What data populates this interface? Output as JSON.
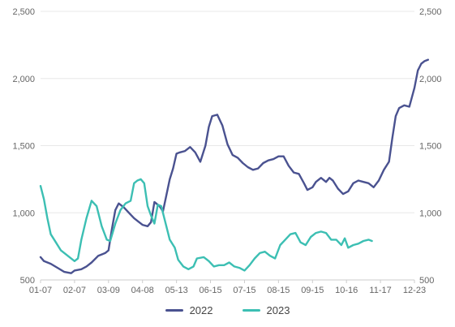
{
  "chart_data": {
    "type": "line",
    "x_labels": [
      "01-07",
      "02-07",
      "03-09",
      "04-08",
      "05-13",
      "06-15",
      "07-15",
      "08-15",
      "09-15",
      "10-16",
      "11-17",
      "12-23"
    ],
    "ylim": [
      500,
      2500
    ],
    "y_ticks": [
      "500",
      "1,000",
      "1,500",
      "2,000",
      "2,500"
    ],
    "y_tick_values": [
      500,
      1000,
      1500,
      2000,
      2500
    ],
    "grid": true,
    "legend_position": "bottom",
    "series": [
      {
        "name": "2022",
        "color": "#4a5290",
        "points": [
          [
            0,
            670
          ],
          [
            0.1,
            640
          ],
          [
            0.3,
            620
          ],
          [
            0.5,
            590
          ],
          [
            0.7,
            560
          ],
          [
            0.9,
            550
          ],
          [
            1.0,
            570
          ],
          [
            1.2,
            580
          ],
          [
            1.35,
            600
          ],
          [
            1.5,
            630
          ],
          [
            1.7,
            680
          ],
          [
            1.9,
            700
          ],
          [
            2.0,
            720
          ],
          [
            2.1,
            880
          ],
          [
            2.2,
            1020
          ],
          [
            2.3,
            1070
          ],
          [
            2.45,
            1040
          ],
          [
            2.6,
            1000
          ],
          [
            2.75,
            960
          ],
          [
            2.9,
            930
          ],
          [
            3.0,
            910
          ],
          [
            3.15,
            900
          ],
          [
            3.25,
            930
          ],
          [
            3.35,
            1080
          ],
          [
            3.5,
            1050
          ],
          [
            3.6,
            1010
          ],
          [
            3.7,
            1130
          ],
          [
            3.8,
            1250
          ],
          [
            3.9,
            1330
          ],
          [
            4.0,
            1440
          ],
          [
            4.1,
            1450
          ],
          [
            4.25,
            1460
          ],
          [
            4.4,
            1490
          ],
          [
            4.55,
            1450
          ],
          [
            4.7,
            1380
          ],
          [
            4.85,
            1500
          ],
          [
            4.95,
            1640
          ],
          [
            5.05,
            1720
          ],
          [
            5.2,
            1730
          ],
          [
            5.35,
            1650
          ],
          [
            5.5,
            1510
          ],
          [
            5.65,
            1430
          ],
          [
            5.8,
            1410
          ],
          [
            5.95,
            1370
          ],
          [
            6.1,
            1340
          ],
          [
            6.25,
            1320
          ],
          [
            6.4,
            1330
          ],
          [
            6.55,
            1370
          ],
          [
            6.7,
            1390
          ],
          [
            6.85,
            1400
          ],
          [
            7.0,
            1420
          ],
          [
            7.15,
            1420
          ],
          [
            7.3,
            1350
          ],
          [
            7.45,
            1300
          ],
          [
            7.6,
            1290
          ],
          [
            7.75,
            1220
          ],
          [
            7.85,
            1170
          ],
          [
            8.0,
            1190
          ],
          [
            8.1,
            1230
          ],
          [
            8.25,
            1260
          ],
          [
            8.4,
            1230
          ],
          [
            8.5,
            1260
          ],
          [
            8.6,
            1240
          ],
          [
            8.75,
            1180
          ],
          [
            8.9,
            1140
          ],
          [
            9.05,
            1160
          ],
          [
            9.2,
            1220
          ],
          [
            9.35,
            1240
          ],
          [
            9.5,
            1230
          ],
          [
            9.65,
            1220
          ],
          [
            9.8,
            1190
          ],
          [
            9.95,
            1240
          ],
          [
            10.1,
            1320
          ],
          [
            10.25,
            1380
          ],
          [
            10.35,
            1560
          ],
          [
            10.45,
            1720
          ],
          [
            10.55,
            1780
          ],
          [
            10.7,
            1800
          ],
          [
            10.85,
            1790
          ],
          [
            11.0,
            1930
          ],
          [
            11.1,
            2060
          ],
          [
            11.2,
            2110
          ],
          [
            11.3,
            2130
          ],
          [
            11.4,
            2140
          ]
        ]
      },
      {
        "name": "2023",
        "color": "#3cbfb3",
        "points": [
          [
            0,
            1200
          ],
          [
            0.1,
            1100
          ],
          [
            0.2,
            960
          ],
          [
            0.3,
            840
          ],
          [
            0.45,
            780
          ],
          [
            0.6,
            720
          ],
          [
            0.8,
            680
          ],
          [
            1.0,
            640
          ],
          [
            1.1,
            660
          ],
          [
            1.2,
            800
          ],
          [
            1.35,
            960
          ],
          [
            1.5,
            1090
          ],
          [
            1.65,
            1050
          ],
          [
            1.8,
            900
          ],
          [
            1.95,
            800
          ],
          [
            2.05,
            790
          ],
          [
            2.2,
            920
          ],
          [
            2.35,
            1020
          ],
          [
            2.5,
            1070
          ],
          [
            2.65,
            1090
          ],
          [
            2.75,
            1220
          ],
          [
            2.85,
            1240
          ],
          [
            2.95,
            1250
          ],
          [
            3.05,
            1220
          ],
          [
            3.15,
            1050
          ],
          [
            3.25,
            980
          ],
          [
            3.35,
            920
          ],
          [
            3.45,
            1060
          ],
          [
            3.55,
            1050
          ],
          [
            3.7,
            900
          ],
          [
            3.8,
            800
          ],
          [
            3.95,
            740
          ],
          [
            4.05,
            650
          ],
          [
            4.2,
            600
          ],
          [
            4.35,
            580
          ],
          [
            4.5,
            600
          ],
          [
            4.6,
            660
          ],
          [
            4.8,
            670
          ],
          [
            4.95,
            640
          ],
          [
            5.1,
            600
          ],
          [
            5.25,
            610
          ],
          [
            5.4,
            610
          ],
          [
            5.55,
            630
          ],
          [
            5.7,
            600
          ],
          [
            5.85,
            590
          ],
          [
            6.0,
            570
          ],
          [
            6.15,
            610
          ],
          [
            6.3,
            660
          ],
          [
            6.45,
            700
          ],
          [
            6.6,
            710
          ],
          [
            6.75,
            680
          ],
          [
            6.9,
            660
          ],
          [
            7.05,
            760
          ],
          [
            7.2,
            800
          ],
          [
            7.35,
            840
          ],
          [
            7.5,
            850
          ],
          [
            7.65,
            780
          ],
          [
            7.8,
            760
          ],
          [
            7.95,
            820
          ],
          [
            8.1,
            850
          ],
          [
            8.25,
            860
          ],
          [
            8.4,
            850
          ],
          [
            8.55,
            800
          ],
          [
            8.7,
            800
          ],
          [
            8.85,
            760
          ],
          [
            8.95,
            810
          ],
          [
            9.05,
            740
          ],
          [
            9.2,
            760
          ],
          [
            9.35,
            770
          ],
          [
            9.5,
            790
          ],
          [
            9.65,
            800
          ],
          [
            9.75,
            790
          ]
        ]
      }
    ]
  },
  "legend": [
    {
      "label": "2022",
      "color": "#4a5290"
    },
    {
      "label": "2023",
      "color": "#3cbfb3"
    }
  ]
}
